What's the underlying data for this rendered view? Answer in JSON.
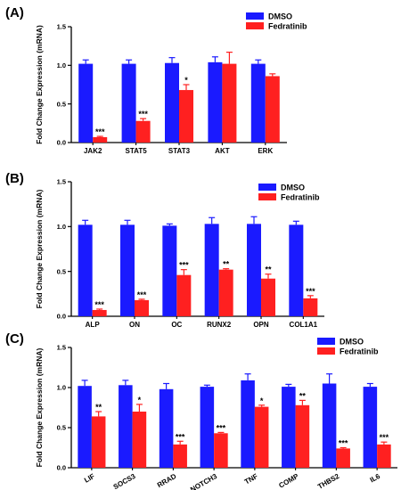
{
  "colors": {
    "dmso": "#1a1aff",
    "fedratinib": "#ff2020",
    "axis": "#000000"
  },
  "chart_data": [
    {
      "panel": "(A)",
      "type": "bar",
      "ylabel": "Fold Change Expression (mRNA)",
      "ylim": [
        0,
        1.5
      ],
      "yticks": [
        "0.0",
        "0.5",
        "1.0",
        "1.5"
      ],
      "categories": [
        "JAK2",
        "STAT5",
        "STAT3",
        "AKT",
        "ERK"
      ],
      "legend": [
        "DMSO",
        "Fedratinib"
      ],
      "legend_position": "top-right",
      "series": [
        {
          "name": "DMSO",
          "values": [
            1.02,
            1.02,
            1.03,
            1.04,
            1.02
          ],
          "errors": [
            0.05,
            0.05,
            0.07,
            0.07,
            0.05
          ]
        },
        {
          "name": "Fedratinib",
          "values": [
            0.07,
            0.28,
            0.68,
            1.02,
            0.86
          ],
          "errors": [
            0.01,
            0.03,
            0.07,
            0.15,
            0.03
          ]
        }
      ],
      "significance": [
        "***",
        "***",
        "*",
        "",
        ""
      ]
    },
    {
      "panel": "(B)",
      "type": "bar",
      "ylabel": "Fold Change Expression (mRNA)",
      "ylim": [
        0,
        1.5
      ],
      "yticks": [
        "0.0",
        "0.5",
        "1.0",
        "1.5"
      ],
      "categories": [
        "ALP",
        "ON",
        "OC",
        "RUNX2",
        "OPN",
        "COL1A1"
      ],
      "legend": [
        "DMSO",
        "Fedratinib"
      ],
      "legend_position": "top-right",
      "series": [
        {
          "name": "DMSO",
          "values": [
            1.02,
            1.02,
            1.01,
            1.03,
            1.03,
            1.02
          ],
          "errors": [
            0.05,
            0.05,
            0.02,
            0.07,
            0.08,
            0.04
          ]
        },
        {
          "name": "Fedratinib",
          "values": [
            0.07,
            0.18,
            0.46,
            0.52,
            0.42,
            0.2
          ],
          "errors": [
            0.01,
            0.01,
            0.06,
            0.01,
            0.05,
            0.03
          ]
        }
      ],
      "significance": [
        "***",
        "***",
        "***",
        "**",
        "**",
        "***"
      ]
    },
    {
      "panel": "(C)",
      "type": "bar",
      "ylabel": "Fold Change Expression (mRNA)",
      "ylim": [
        0,
        1.5
      ],
      "yticks": [
        "0.0",
        "0.5",
        "1.0",
        "1.5"
      ],
      "categories": [
        "LIF",
        "SOCS3",
        "RRAD",
        "NOTCH3",
        "TNF",
        "COMP",
        "THBS2",
        "IL6"
      ],
      "legend": [
        "DMSO",
        "Fedratinib"
      ],
      "legend_position": "top-right",
      "series": [
        {
          "name": "DMSO",
          "values": [
            1.02,
            1.03,
            0.98,
            1.01,
            1.09,
            1.01,
            1.05,
            1.01
          ],
          "errors": [
            0.07,
            0.06,
            0.07,
            0.02,
            0.08,
            0.03,
            0.12,
            0.04
          ]
        },
        {
          "name": "Fedratinib",
          "values": [
            0.64,
            0.7,
            0.29,
            0.43,
            0.76,
            0.78,
            0.24,
            0.29
          ],
          "errors": [
            0.06,
            0.09,
            0.04,
            0.01,
            0.02,
            0.06,
            0.01,
            0.03
          ]
        }
      ],
      "significance": [
        "**",
        "*",
        "***",
        "***",
        "*",
        "**",
        "***",
        "***"
      ]
    }
  ]
}
